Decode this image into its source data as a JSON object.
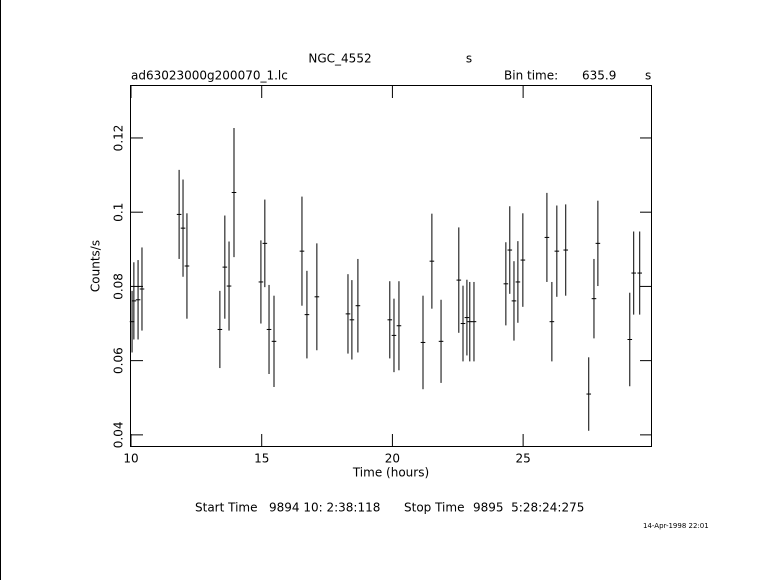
{
  "chart_data": {
    "type": "errorbar",
    "title": "NGC_4552",
    "title_suffix": "s",
    "file": "ad63023000g200070_1.lc",
    "bin_time_label": "Bin time:",
    "bin_time": 635.9,
    "bin_time_unit": "s",
    "xlabel": "Time (hours)",
    "ylabel": "Counts/s",
    "xlim": [
      10,
      29.93
    ],
    "ylim": [
      0.037,
      0.134
    ],
    "xticks": [
      10,
      15,
      20,
      25
    ],
    "yticks": [
      0.04,
      0.06,
      0.08,
      0.1,
      0.12
    ],
    "color": "#000000",
    "x": [
      10.04,
      10.11,
      10.27,
      10.42,
      11.84,
      11.99,
      12.14,
      13.4,
      13.59,
      13.75,
      13.94,
      14.97,
      15.12,
      15.28,
      15.47,
      16.54,
      16.73,
      17.11,
      18.3,
      18.45,
      18.68,
      19.9,
      20.06,
      20.25,
      21.17,
      21.51,
      21.86,
      22.54,
      22.7,
      22.85,
      22.96,
      23.12,
      24.34,
      24.49,
      24.65,
      24.8,
      24.99,
      25.91,
      26.1,
      26.29,
      26.63,
      27.51,
      27.71,
      27.86,
      29.08,
      29.23,
      29.46
    ],
    "values": [
      0.0705,
      0.0761,
      0.0764,
      0.0793,
      0.0994,
      0.0957,
      0.0855,
      0.0684,
      0.0852,
      0.0801,
      0.1053,
      0.0812,
      0.0916,
      0.0684,
      0.0652,
      0.0895,
      0.0724,
      0.0772,
      0.0726,
      0.071,
      0.0748,
      0.071,
      0.0668,
      0.0694,
      0.0649,
      0.0868,
      0.0652,
      0.0817,
      0.07,
      0.0716,
      0.0705,
      0.0705,
      0.0807,
      0.0898,
      0.0761,
      0.0812,
      0.0871,
      0.0932,
      0.0705,
      0.0895,
      0.0898,
      0.051,
      0.0767,
      0.0916,
      0.0657,
      0.0836,
      0.0836
    ],
    "errors": [
      0.0083,
      0.0104,
      0.0107,
      0.0112,
      0.012,
      0.0131,
      0.0142,
      0.0104,
      0.0139,
      0.012,
      0.0174,
      0.0112,
      0.0118,
      0.012,
      0.0123,
      0.0147,
      0.0118,
      0.0144,
      0.0107,
      0.0107,
      0.0126,
      0.0104,
      0.0099,
      0.012,
      0.0126,
      0.0128,
      0.0112,
      0.0142,
      0.0102,
      0.0102,
      0.0107,
      0.0107,
      0.0112,
      0.0118,
      0.0107,
      0.011,
      0.0126,
      0.012,
      0.0107,
      0.0123,
      0.0123,
      0.0099,
      0.0107,
      0.0115,
      0.0126,
      0.0112,
      0.0112
    ],
    "footer": {
      "start_label": "Start Time",
      "start": "9894 10: 2:38:118",
      "stop_label": "Stop Time",
      "stop": "9895  5:28:24:275"
    },
    "timestamp": "14-Apr-1998 22:01"
  }
}
